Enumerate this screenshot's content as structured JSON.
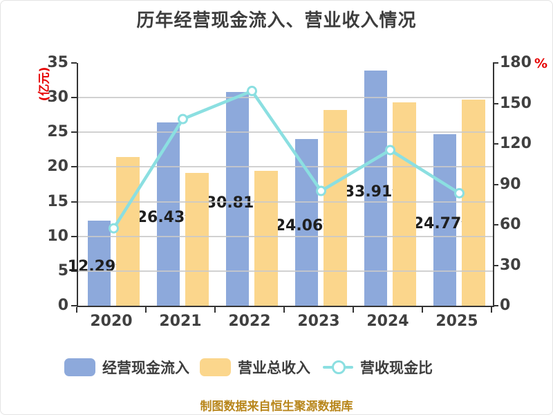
{
  "title": "历年经营现金流入、营业收入情况",
  "caption": "制图数据来自恒生聚源数据库",
  "left_axis": {
    "unit_label": "(亿元)",
    "ticks": [
      "35",
      "30",
      "25",
      "20",
      "15",
      "10",
      "5",
      "0"
    ],
    "max": 35
  },
  "right_axis": {
    "unit_label": "%",
    "ticks": [
      "180",
      "150",
      "120",
      "90",
      "60",
      "30",
      "0"
    ],
    "max": 180
  },
  "x_axis": {
    "categories": [
      "2020",
      "2021",
      "2022",
      "2023",
      "2024",
      "2025"
    ]
  },
  "colors": {
    "cash_bar": "#8da9db",
    "revenue_bar": "#fbd68c",
    "ratio_line": "#8bdfe1",
    "marker_fill": "#ffffff",
    "gridline": "#c9c9c9",
    "axis_line": "#333333",
    "accent_red": "#e60000",
    "text": "#3d3d3d",
    "caption": "#b8861b"
  },
  "legend": [
    {
      "label": "经营现金流入",
      "type": "bar",
      "color": "#8da9db"
    },
    {
      "label": "营业总收入",
      "type": "bar",
      "color": "#fbd68c"
    },
    {
      "label": "营收现金比",
      "type": "line",
      "color": "#8bdfe1"
    }
  ],
  "chart_data": {
    "type": "bar+line",
    "title": "历年经营现金流入、营业收入情况",
    "categories": [
      "2020",
      "2021",
      "2022",
      "2023",
      "2024",
      "2025"
    ],
    "left_ylim": [
      0,
      35
    ],
    "right_ylim": [
      0,
      180
    ],
    "grid": true,
    "legend_position": "bottom",
    "series": [
      {
        "name": "经营现金流入",
        "type": "bar",
        "axis": "left",
        "unit": "亿元",
        "values": [
          12.29,
          26.43,
          30.81,
          24.06,
          33.91,
          24.77
        ],
        "labels": [
          "12.29亿",
          "26.43亿",
          "30.81亿",
          "24.06亿",
          "33.91亿",
          "24.77亿"
        ]
      },
      {
        "name": "营业总收入",
        "type": "bar",
        "axis": "left",
        "unit": "亿元",
        "values": [
          21.4,
          19.1,
          19.4,
          28.2,
          29.3,
          29.7
        ]
      },
      {
        "name": "营收现金比",
        "type": "line",
        "axis": "right",
        "unit": "%",
        "values": [
          57.4,
          138.4,
          159.2,
          85.1,
          115.4,
          83.4
        ]
      }
    ]
  }
}
